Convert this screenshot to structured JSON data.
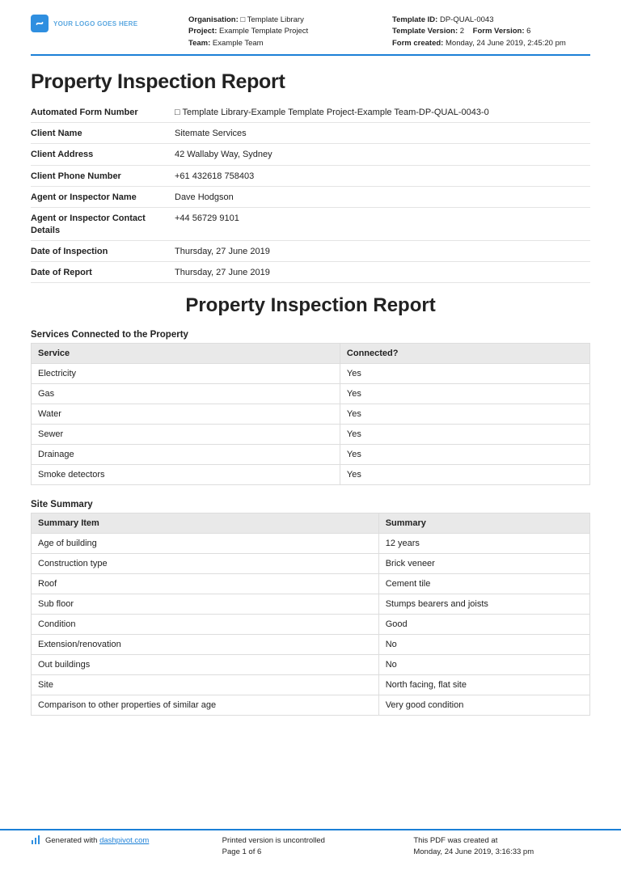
{
  "colors": {
    "accent": "#1b7fd6",
    "logo_bg": "#2f8fe0",
    "logo_text": "#5aa7e0",
    "header_bg": "#e9e9e9",
    "border": "#dddddd",
    "row_border": "#e4e4e4",
    "text": "#222222"
  },
  "header": {
    "logo_placeholder": "YOUR LOGO GOES HERE",
    "left": {
      "organisation_label": "Organisation:",
      "organisation_value": "□ Template Library",
      "project_label": "Project:",
      "project_value": "Example Template Project",
      "team_label": "Team:",
      "team_value": "Example Team"
    },
    "right": {
      "template_id_label": "Template ID:",
      "template_id_value": "DP-QUAL-0043",
      "template_version_label": "Template Version:",
      "template_version_value": "2",
      "form_version_label": "Form Version:",
      "form_version_value": "6",
      "form_created_label": "Form created:",
      "form_created_value": "Monday, 24 June 2019, 2:45:20 pm"
    }
  },
  "title": "Property Inspection Report",
  "info_rows": [
    {
      "label": "Automated Form Number",
      "value": "□ Template Library-Example Template Project-Example Team-DP-QUAL-0043-0"
    },
    {
      "label": "Client Name",
      "value": "Sitemate Services"
    },
    {
      "label": "Client Address",
      "value": "42 Wallaby Way, Sydney"
    },
    {
      "label": "Client Phone Number",
      "value": "+61 432618 758403"
    },
    {
      "label": "Agent or Inspector Name",
      "value": "Dave Hodgson"
    },
    {
      "label": "Agent or Inspector Contact Details",
      "value": "+44 56729 9101"
    },
    {
      "label": "Date of Inspection",
      "value": "Thursday, 27 June 2019"
    },
    {
      "label": "Date of Report",
      "value": "Thursday, 27 June 2019"
    }
  ],
  "center_title": "Property Inspection Report",
  "services_section": {
    "heading": "Services Connected to the Property",
    "columns": [
      "Service",
      "Connected?"
    ],
    "rows": [
      [
        "Electricity",
        "Yes"
      ],
      [
        "Gas",
        "Yes"
      ],
      [
        "Water",
        "Yes"
      ],
      [
        "Sewer",
        "Yes"
      ],
      [
        "Drainage",
        "Yes"
      ],
      [
        "Smoke detectors",
        "Yes"
      ]
    ]
  },
  "summary_section": {
    "heading": "Site Summary",
    "columns": [
      "Summary Item",
      "Summary"
    ],
    "rows": [
      [
        "Age of building",
        "12 years"
      ],
      [
        "Construction type",
        "Brick veneer"
      ],
      [
        "Roof",
        "Cement tile"
      ],
      [
        "Sub floor",
        "Stumps bearers and joists"
      ],
      [
        "Condition",
        "Good"
      ],
      [
        "Extension/renovation",
        "No"
      ],
      [
        "Out buildings",
        "No"
      ],
      [
        "Site",
        "North facing, flat site"
      ],
      [
        "Comparison to other properties of similar age",
        "Very good condition"
      ]
    ]
  },
  "footer": {
    "generated_prefix": "Generated with ",
    "generated_link": "dashpivot.com",
    "center_line1": "Printed version is uncontrolled",
    "center_line2": "Page 1 of 6",
    "right_line1": "This PDF was created at",
    "right_line2": "Monday, 24 June 2019, 3:16:33 pm"
  }
}
